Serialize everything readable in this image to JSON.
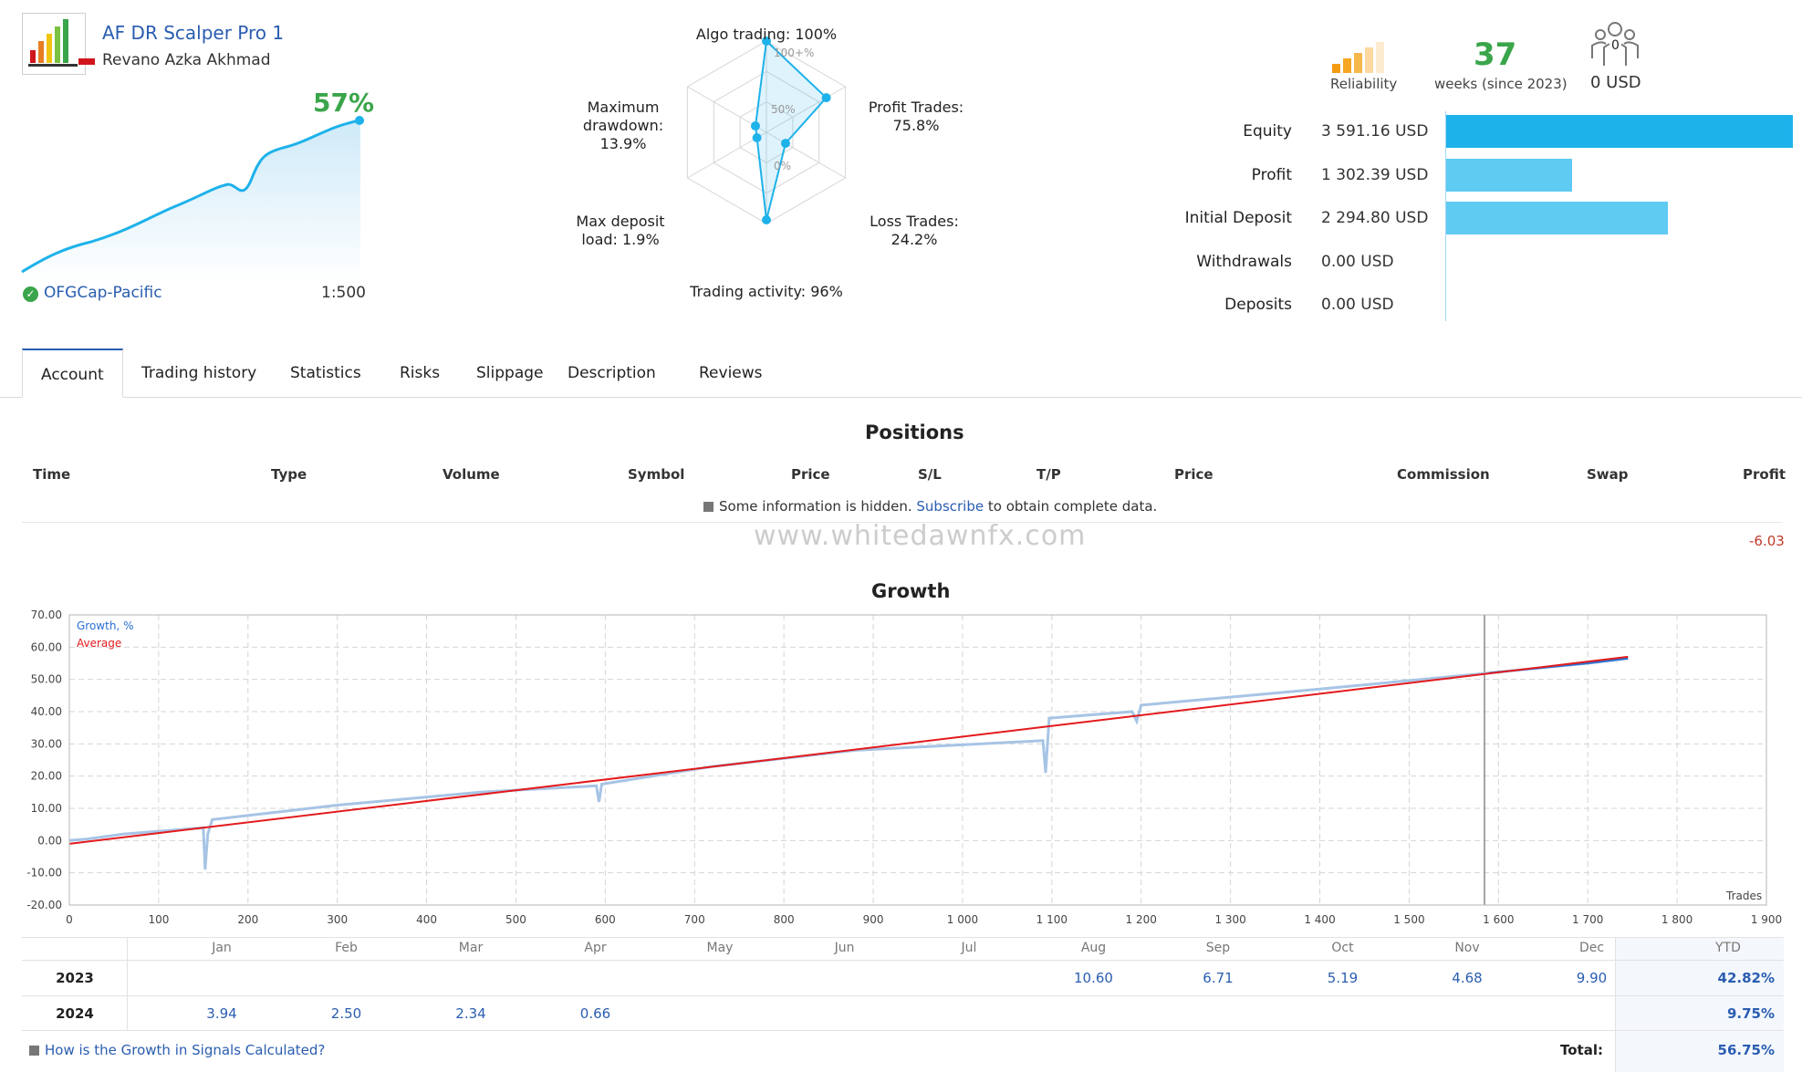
{
  "header": {
    "title": "AF DR Scalper Pro 1",
    "author": "Revano Azka Akhmad",
    "growth": "57%",
    "broker": "OFGCap-Pacific",
    "leverage": "1:500"
  },
  "radar": {
    "algo": "Algo trading: 100%",
    "profit_trades_l1": "Profit Trades:",
    "profit_trades_l2": "75.8%",
    "loss_trades_l1": "Loss Trades:",
    "loss_trades_l2": "24.2%",
    "activity": "Trading activity: 96%",
    "deposit_load_l1": "Max deposit",
    "deposit_load_l2": "load: 1.9%",
    "drawdown_l1": "Maximum",
    "drawdown_l2": "drawdown:",
    "drawdown_l3": "13.9%",
    "tick_100": "100+%",
    "tick_50": "50%",
    "tick_0": "0%",
    "values": {
      "algo": 100,
      "profit": 75.8,
      "loss": 24.2,
      "activity": 96,
      "load": 1.9,
      "drawdown": 13.9
    }
  },
  "stats": {
    "reliability_label": "Reliability",
    "weeks": "37",
    "weeks_label": "weeks (since 2023)",
    "subscribers": "0",
    "subscribers_usd": "0 USD"
  },
  "finance": [
    {
      "label": "Equity",
      "value": "3 591.16 USD",
      "amount": 3591.16,
      "color": "#1eb2ea"
    },
    {
      "label": "Profit",
      "value": "1 302.39 USD",
      "amount": 1302.39,
      "color": "#5fcaf2"
    },
    {
      "label": "Initial Deposit",
      "value": "2 294.80 USD",
      "amount": 2294.8,
      "color": "#5fcaf2"
    },
    {
      "label": "Withdrawals",
      "value": "0.00 USD",
      "amount": 0,
      "color": "#5fcaf2"
    },
    {
      "label": "Deposits",
      "value": "0.00 USD",
      "amount": 0,
      "color": "#5fcaf2"
    }
  ],
  "tabs": [
    "Account",
    "Trading history",
    "Statistics",
    "Risks",
    "Slippage",
    "Description",
    "Reviews"
  ],
  "positions": {
    "title": "Positions",
    "columns": [
      "Time",
      "Type",
      "Volume",
      "Symbol",
      "Price",
      "S/L",
      "T/P",
      "Price",
      "Commission",
      "Swap",
      "Profit"
    ],
    "hidden_text_1": "Some information is hidden.",
    "subscribe": "Subscribe",
    "hidden_text_2": "to obtain complete data.",
    "watermark": "www.whitedawnfx.com",
    "profit": "-6.03"
  },
  "growth": {
    "title": "Growth",
    "legend_growth": "Growth, %",
    "legend_average": "Average",
    "trades_label": "Trades",
    "y_ticks": [
      "70.00",
      "60.00",
      "50.00",
      "40.00",
      "30.00",
      "20.00",
      "10.00",
      "0.00",
      "-10.00",
      "-20.00"
    ],
    "x_ticks": [
      "0",
      "100",
      "200",
      "300",
      "400",
      "500",
      "600",
      "700",
      "800",
      "900",
      "1 000",
      "1 100",
      "1 200",
      "1 300",
      "1 400",
      "1 500",
      "1 600",
      "1 700",
      "1 800",
      "1 900"
    ]
  },
  "chart_data": {
    "type": "line",
    "xlabel": "Trades",
    "xlim": [
      0,
      1900
    ],
    "ylim": [
      -20,
      70
    ],
    "series": [
      {
        "name": "Growth, %",
        "x": [
          0,
          20,
          60,
          150,
          152,
          155,
          160,
          300,
          460,
          590,
          593,
          596,
          720,
          880,
          1090,
          1093,
          1097,
          1190,
          1195,
          1200,
          1400,
          1590,
          1700,
          1745
        ],
        "y": [
          0,
          0.5,
          2,
          4,
          -9,
          2,
          6.5,
          11,
          15,
          17,
          12,
          17.5,
          23,
          28,
          31,
          21,
          38,
          40,
          37,
          42,
          47,
          52,
          55,
          56.5
        ]
      },
      {
        "name": "Average",
        "x": [
          0,
          1745
        ],
        "y": [
          -1,
          57
        ]
      }
    ]
  },
  "monthly": {
    "months": [
      "Jan",
      "Feb",
      "Mar",
      "Apr",
      "May",
      "Jun",
      "Jul",
      "Aug",
      "Sep",
      "Oct",
      "Nov",
      "Dec"
    ],
    "ytd_label": "YTD",
    "rows": [
      {
        "year": "2023",
        "values": [
          "",
          "",
          "",
          "",
          "",
          "",
          "",
          "10.60",
          "6.71",
          "5.19",
          "4.68",
          "9.90"
        ],
        "ytd": "42.82%"
      },
      {
        "year": "2024",
        "values": [
          "3.94",
          "2.50",
          "2.34",
          "0.66",
          "",
          "",
          "",
          "",
          "",
          "",
          "",
          ""
        ],
        "ytd": "9.75%"
      }
    ],
    "faq_link": "How is the Growth in Signals Calculated?",
    "total_label": "Total:",
    "total_value": "56.75%"
  }
}
